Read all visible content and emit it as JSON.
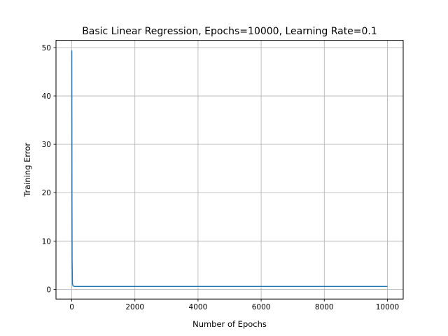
{
  "chart_data": {
    "type": "line",
    "title": "Basic Linear Regression, Epochs=10000, Learning Rate=0.1",
    "xlabel": "Number of Epochs",
    "ylabel": "Training Error",
    "xlim": [
      -500,
      10500
    ],
    "ylim": [
      -2,
      51.5
    ],
    "xticks": [
      0,
      2000,
      4000,
      6000,
      8000,
      10000
    ],
    "yticks": [
      0,
      10,
      20,
      30,
      40,
      50
    ],
    "grid": true,
    "line_color": "#1f77b4",
    "series": [
      {
        "x": [
          0,
          2,
          5,
          10,
          20,
          40,
          100,
          500,
          1000,
          2000,
          3000,
          4000,
          5000,
          6000,
          7000,
          8000,
          9000,
          10000
        ],
        "values": [
          49.4,
          38.0,
          20.0,
          6.0,
          1.2,
          0.7,
          0.6,
          0.6,
          0.6,
          0.6,
          0.6,
          0.6,
          0.6,
          0.6,
          0.6,
          0.6,
          0.6,
          0.6
        ]
      }
    ]
  }
}
